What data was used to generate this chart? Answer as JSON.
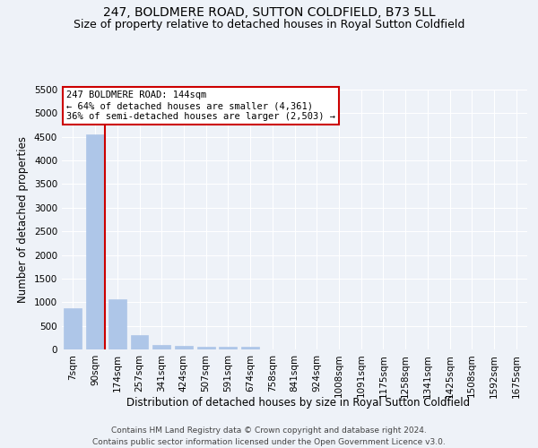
{
  "title": "247, BOLDMERE ROAD, SUTTON COLDFIELD, B73 5LL",
  "subtitle": "Size of property relative to detached houses in Royal Sutton Coldfield",
  "xlabel": "Distribution of detached houses by size in Royal Sutton Coldfield",
  "ylabel": "Number of detached properties",
  "footer_line1": "Contains HM Land Registry data © Crown copyright and database right 2024.",
  "footer_line2": "Contains public sector information licensed under the Open Government Licence v3.0.",
  "bar_labels": [
    "7sqm",
    "90sqm",
    "174sqm",
    "257sqm",
    "341sqm",
    "424sqm",
    "507sqm",
    "591sqm",
    "674sqm",
    "758sqm",
    "841sqm",
    "924sqm",
    "1008sqm",
    "1091sqm",
    "1175sqm",
    "1258sqm",
    "1341sqm",
    "1425sqm",
    "1508sqm",
    "1592sqm",
    "1675sqm"
  ],
  "bar_values": [
    880,
    4550,
    1060,
    305,
    100,
    80,
    65,
    65,
    55,
    0,
    0,
    0,
    0,
    0,
    0,
    0,
    0,
    0,
    0,
    0,
    0
  ],
  "bar_color": "#aec6e8",
  "bar_edge_color": "#aec6e8",
  "bar_width": 0.8,
  "vline_color": "#cc0000",
  "vline_x": 1.45,
  "ylim": [
    0,
    5500
  ],
  "yticks": [
    0,
    500,
    1000,
    1500,
    2000,
    2500,
    3000,
    3500,
    4000,
    4500,
    5000,
    5500
  ],
  "background_color": "#eef2f8",
  "grid_color": "#ffffff",
  "annotation_box_facecolor": "#ffffff",
  "annotation_box_edge": "#cc0000",
  "property_label": "247 BOLDMERE ROAD: 144sqm",
  "annotation_line1": "← 64% of detached houses are smaller (4,361)",
  "annotation_line2": "36% of semi-detached houses are larger (2,503) →",
  "title_fontsize": 10,
  "subtitle_fontsize": 9,
  "xlabel_fontsize": 8.5,
  "ylabel_fontsize": 8.5,
  "tick_fontsize": 7.5,
  "annotation_fontsize": 7.5,
  "footer_fontsize": 6.5
}
